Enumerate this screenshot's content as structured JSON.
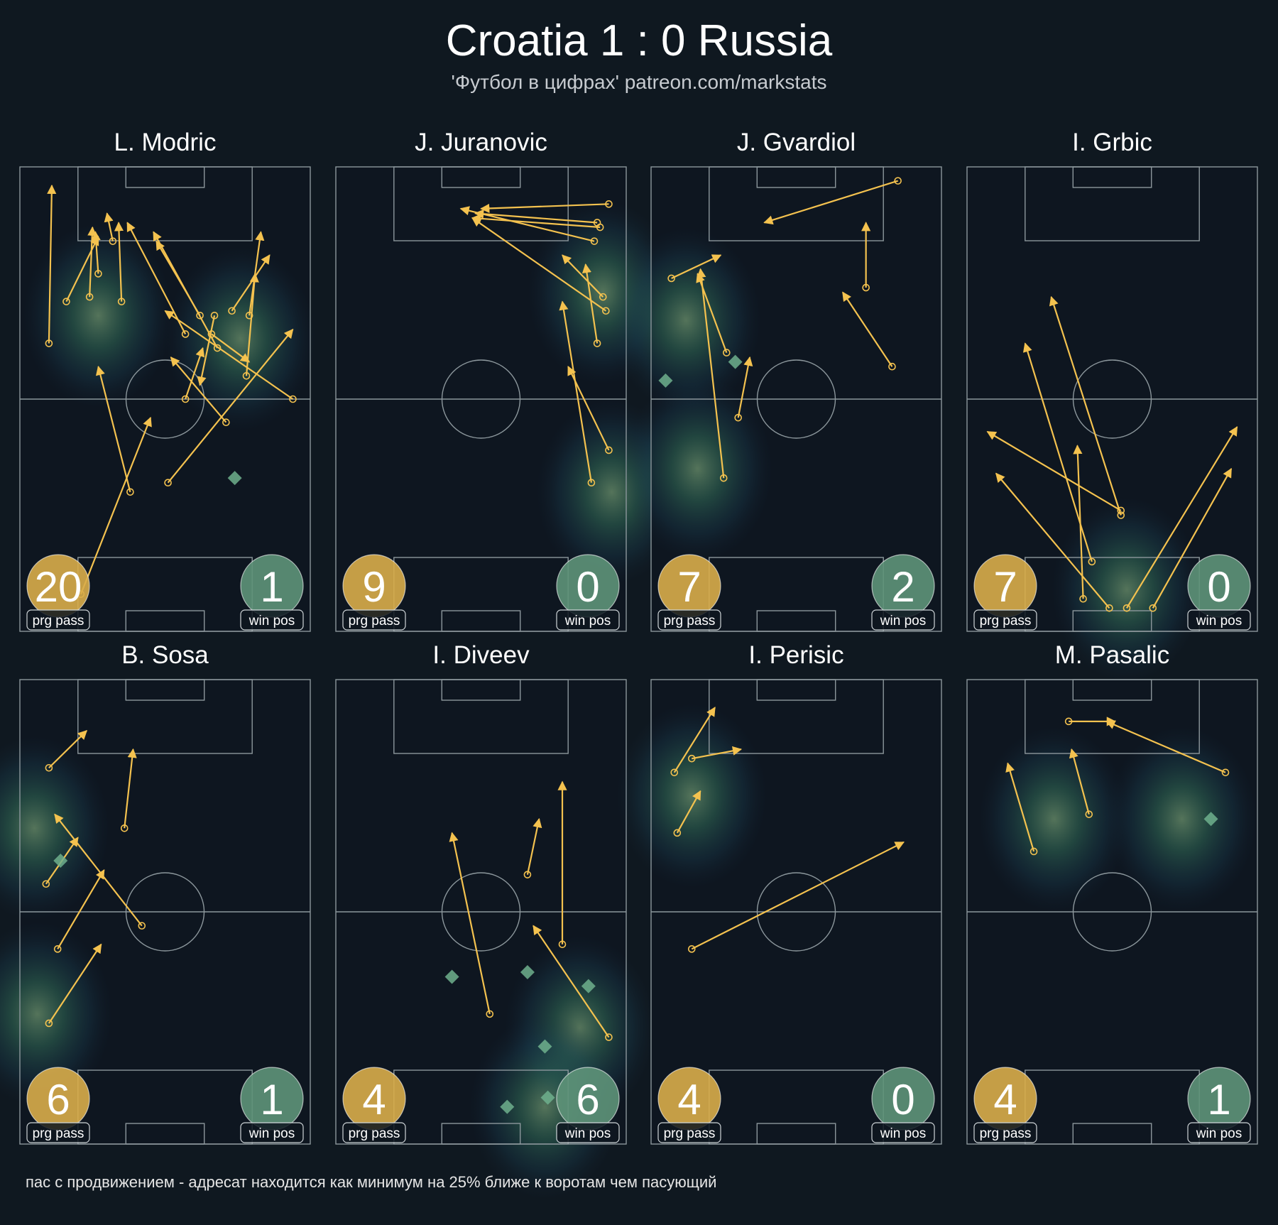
{
  "header": {
    "title": "Croatia 1 : 0 Russia",
    "subtitle": "'Футбол в цифрах' patreon.com/markstats"
  },
  "footnote": "пас с продвижением - адресат находится как минимум на 25% ближе к воротам чем пасующий",
  "badge_labels": {
    "prg": "prg pass",
    "win": "win pos"
  },
  "colors": {
    "background": "#0f1820",
    "pitch_lines": "#8c979c",
    "arrow": "#f4c24f",
    "prg_badge": "#d9ad4a",
    "win_badge": "#5e9479",
    "win_marker": "#6fb08d"
  },
  "chart_data": [
    {
      "type": "scatter",
      "player": "L. Modric",
      "prg_pass": 20,
      "win_pos": 1,
      "heat": [
        [
          0.27,
          0.32
        ],
        [
          0.76,
          0.37
        ]
      ],
      "passes": [
        [
          0.1,
          0.38,
          0.11,
          0.04
        ],
        [
          0.32,
          0.16,
          0.3,
          0.1
        ],
        [
          0.27,
          0.23,
          0.26,
          0.14
        ],
        [
          0.35,
          0.29,
          0.34,
          0.12
        ],
        [
          0.62,
          0.32,
          0.47,
          0.16
        ],
        [
          0.68,
          0.39,
          0.46,
          0.14
        ],
        [
          0.57,
          0.36,
          0.37,
          0.12
        ],
        [
          0.16,
          0.29,
          0.27,
          0.15
        ],
        [
          0.24,
          0.28,
          0.25,
          0.13
        ],
        [
          0.78,
          0.45,
          0.81,
          0.23
        ],
        [
          0.79,
          0.32,
          0.83,
          0.14
        ],
        [
          0.73,
          0.31,
          0.86,
          0.19
        ],
        [
          0.71,
          0.55,
          0.52,
          0.41
        ],
        [
          0.67,
          0.32,
          0.62,
          0.47
        ],
        [
          0.57,
          0.5,
          0.63,
          0.39
        ],
        [
          0.66,
          0.36,
          0.79,
          0.42
        ],
        [
          0.94,
          0.5,
          0.5,
          0.31
        ],
        [
          0.51,
          0.68,
          0.94,
          0.35
        ],
        [
          0.21,
          0.92,
          0.45,
          0.54
        ],
        [
          0.38,
          0.7,
          0.27,
          0.43
        ]
      ],
      "wins": [
        [
          0.74,
          0.67
        ]
      ]
    },
    {
      "type": "scatter",
      "player": "J. Juranovic",
      "prg_pass": 9,
      "win_pos": 0,
      "heat": [
        [
          0.92,
          0.27
        ],
        [
          0.95,
          0.7
        ]
      ],
      "passes": [
        [
          0.94,
          0.08,
          0.5,
          0.09
        ],
        [
          0.89,
          0.16,
          0.43,
          0.09
        ],
        [
          0.91,
          0.13,
          0.47,
          0.11
        ],
        [
          0.9,
          0.12,
          0.48,
          0.1
        ],
        [
          0.93,
          0.31,
          0.47,
          0.11
        ],
        [
          0.92,
          0.28,
          0.78,
          0.19
        ],
        [
          0.9,
          0.38,
          0.86,
          0.21
        ],
        [
          0.94,
          0.61,
          0.8,
          0.43
        ],
        [
          0.88,
          0.68,
          0.78,
          0.29
        ]
      ],
      "wins": []
    },
    {
      "type": "scatter",
      "player": "J. Gvardiol",
      "prg_pass": 7,
      "win_pos": 2,
      "heat": [
        [
          0.16,
          0.65
        ],
        [
          0.12,
          0.33
        ]
      ],
      "passes": [
        [
          0.85,
          0.03,
          0.39,
          0.12
        ],
        [
          0.74,
          0.26,
          0.74,
          0.12
        ],
        [
          0.83,
          0.43,
          0.66,
          0.27
        ],
        [
          0.07,
          0.24,
          0.24,
          0.19
        ],
        [
          0.25,
          0.67,
          0.17,
          0.22
        ],
        [
          0.26,
          0.4,
          0.16,
          0.23
        ],
        [
          0.3,
          0.54,
          0.34,
          0.41
        ]
      ],
      "wins": [
        [
          0.05,
          0.46
        ],
        [
          0.29,
          0.42
        ]
      ]
    },
    {
      "type": "scatter",
      "player": "I. Grbic",
      "prg_pass": 7,
      "win_pos": 0,
      "heat": [
        [
          0.55,
          0.91
        ]
      ],
      "passes": [
        [
          0.53,
          0.74,
          0.07,
          0.57
        ],
        [
          0.49,
          0.95,
          0.1,
          0.66
        ],
        [
          0.4,
          0.93,
          0.38,
          0.6
        ],
        [
          0.43,
          0.85,
          0.2,
          0.38
        ],
        [
          0.55,
          0.95,
          0.93,
          0.56
        ],
        [
          0.64,
          0.95,
          0.91,
          0.65
        ],
        [
          0.53,
          0.75,
          0.29,
          0.28
        ]
      ],
      "wins": []
    },
    {
      "type": "scatter",
      "player": "B. Sosa",
      "prg_pass": 6,
      "win_pos": 1,
      "heat": [
        [
          0.05,
          0.32
        ],
        [
          0.06,
          0.72
        ]
      ],
      "passes": [
        [
          0.1,
          0.19,
          0.23,
          0.11
        ],
        [
          0.36,
          0.32,
          0.39,
          0.15
        ],
        [
          0.42,
          0.53,
          0.12,
          0.29
        ],
        [
          0.09,
          0.44,
          0.2,
          0.34
        ],
        [
          0.13,
          0.58,
          0.29,
          0.41
        ],
        [
          0.1,
          0.74,
          0.28,
          0.57
        ]
      ],
      "wins": [
        [
          0.14,
          0.39
        ]
      ]
    },
    {
      "type": "scatter",
      "player": "I. Diveev",
      "prg_pass": 4,
      "win_pos": 6,
      "heat": [
        [
          0.84,
          0.75
        ],
        [
          0.72,
          0.92
        ]
      ],
      "passes": [
        [
          0.53,
          0.72,
          0.4,
          0.33
        ],
        [
          0.66,
          0.42,
          0.7,
          0.3
        ],
        [
          0.78,
          0.57,
          0.78,
          0.22
        ],
        [
          0.94,
          0.77,
          0.68,
          0.53
        ]
      ],
      "wins": [
        [
          0.4,
          0.64
        ],
        [
          0.66,
          0.63
        ],
        [
          0.87,
          0.66
        ],
        [
          0.72,
          0.79
        ],
        [
          0.73,
          0.9
        ],
        [
          0.59,
          0.92
        ]
      ]
    },
    {
      "type": "scatter",
      "player": "I. Perisic",
      "prg_pass": 4,
      "win_pos": 0,
      "heat": [
        [
          0.14,
          0.25
        ]
      ],
      "passes": [
        [
          0.08,
          0.2,
          0.22,
          0.06
        ],
        [
          0.14,
          0.17,
          0.31,
          0.15
        ],
        [
          0.09,
          0.33,
          0.17,
          0.24
        ],
        [
          0.14,
          0.58,
          0.87,
          0.35
        ]
      ],
      "wins": []
    },
    {
      "type": "scatter",
      "player": "M. Pasalic",
      "prg_pass": 4,
      "win_pos": 1,
      "heat": [
        [
          0.3,
          0.3
        ],
        [
          0.74,
          0.3
        ]
      ],
      "passes": [
        [
          0.89,
          0.2,
          0.48,
          0.09
        ],
        [
          0.35,
          0.09,
          0.51,
          0.09
        ],
        [
          0.23,
          0.37,
          0.14,
          0.18
        ],
        [
          0.42,
          0.29,
          0.36,
          0.15
        ]
      ],
      "wins": [
        [
          0.84,
          0.3
        ]
      ]
    }
  ]
}
